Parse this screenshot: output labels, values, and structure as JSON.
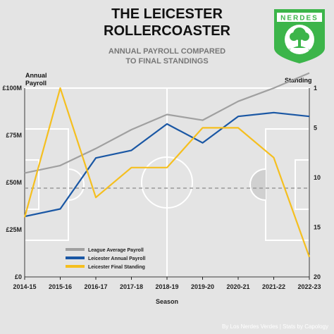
{
  "header": {
    "title_line1": "THE LEICESTER",
    "title_line2": "ROLLERCOASTER",
    "subtitle_line1": "ANNUAL PAYROLL COMPARED",
    "subtitle_line2": "TO FINAL STANDINGS"
  },
  "logo": {
    "name": "NERDES",
    "left_letter": "T",
    "right_letter": "X",
    "color": "#3cb54a"
  },
  "footer": {
    "credit": "By Los Nerdes Verdes | Stats by Capology"
  },
  "chart_data": {
    "type": "line",
    "title": "",
    "xlabel": "Season",
    "ylabel_left_line1": "Annual",
    "ylabel_left_line2": "Payroll",
    "ylabel_right": "Standing",
    "categories": [
      "2014-15",
      "2015-16",
      "2016-17",
      "2017-18",
      "2018-19",
      "2019-20",
      "2020-21",
      "2021-22",
      "2022-23"
    ],
    "y_left": {
      "range": [
        0,
        100
      ],
      "ticks": [
        "£0",
        "£25M",
        "£50M",
        "£75M",
        "£100M"
      ],
      "tick_values": [
        0,
        25,
        50,
        75,
        100
      ]
    },
    "y_right": {
      "range": [
        1,
        20
      ],
      "inverted": true,
      "ticks": [
        "1",
        "5",
        "10",
        "15",
        "20"
      ],
      "tick_values": [
        1,
        5,
        10,
        15,
        20
      ]
    },
    "reference_line": {
      "axis": "left",
      "value": 47,
      "style": "dashed"
    },
    "grid": false,
    "legend_position": "bottom-left",
    "series": [
      {
        "name": "League Average Payroll",
        "axis": "left",
        "color": "#a0a0a0",
        "values": [
          55,
          59,
          68,
          78,
          86,
          83,
          93,
          100,
          108
        ]
      },
      {
        "name": "Leicester Annual Payroll",
        "axis": "left",
        "color": "#1a57a4",
        "values": [
          32,
          36,
          63,
          67,
          81,
          71,
          85,
          87,
          85
        ]
      },
      {
        "name": "Leicester Final Standing",
        "axis": "right",
        "color": "#f5bf1f",
        "values": [
          14,
          1,
          12,
          9,
          9,
          5,
          5,
          8,
          18
        ]
      }
    ]
  }
}
